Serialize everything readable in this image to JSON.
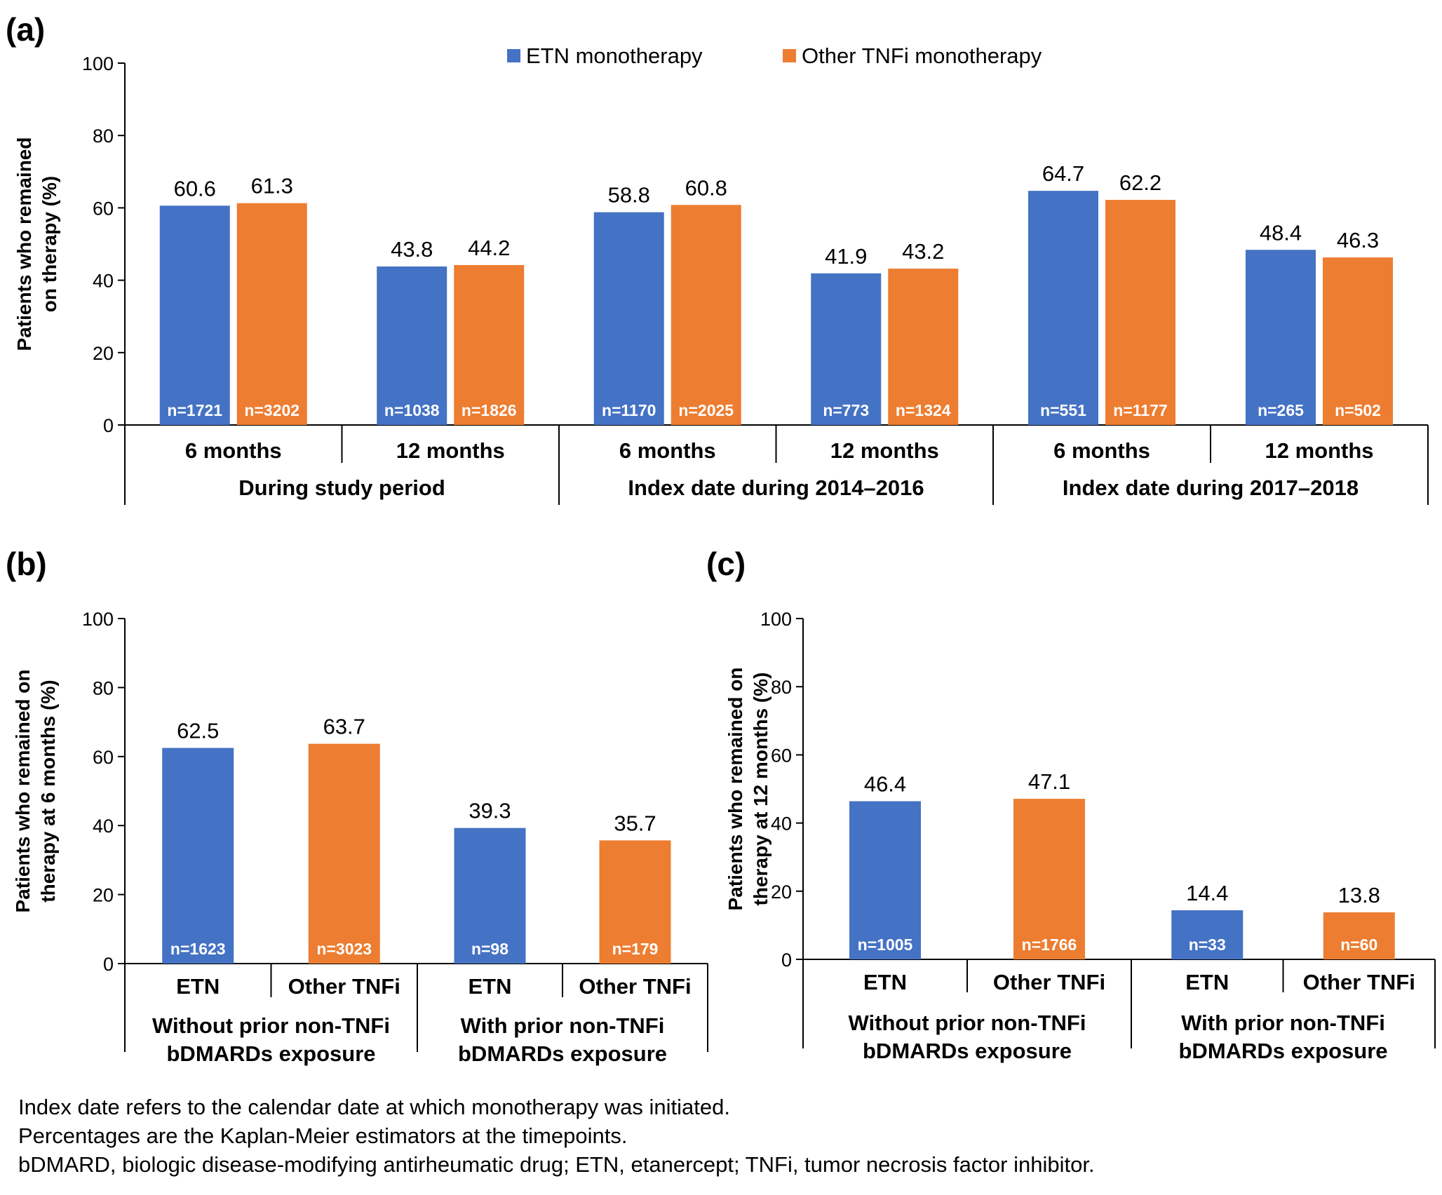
{
  "colors": {
    "etn": "#4472C4",
    "other": "#ED7D31",
    "axis": "#000000"
  },
  "legend": {
    "etn": "ETN monotherapy",
    "other": "Other TNFi monotherapy"
  },
  "chart_data": [
    {
      "panel": "(a)",
      "type": "bar",
      "ylabel_lines": [
        "Patients who remained",
        "on therapy (%)"
      ],
      "ylim": [
        0,
        100
      ],
      "yticks": [
        0,
        20,
        40,
        60,
        80,
        100
      ],
      "categories": [
        "6 months",
        "12 months",
        "6 months",
        "12 months",
        "6 months",
        "12 months"
      ],
      "groups": [
        "During study period",
        "Index date during 2014–2016",
        "Index date during 2017–2018"
      ],
      "series": [
        {
          "name": "ETN monotherapy",
          "values": [
            60.6,
            43.8,
            58.8,
            41.9,
            64.7,
            48.4
          ],
          "value_labels": [
            "60.6",
            "43.8",
            "58.8",
            "41.9",
            "64.7",
            "48.4"
          ],
          "n": [
            "n=1721",
            "n=1038",
            "n=1170",
            "n=773",
            "n=551",
            "n=265"
          ]
        },
        {
          "name": "Other TNFi monotherapy",
          "values": [
            61.3,
            44.2,
            60.8,
            43.2,
            62.2,
            46.3
          ],
          "value_labels": [
            "61.3",
            "44.2",
            "60.8",
            "43.2",
            "62.2",
            "46.3"
          ],
          "n": [
            "n=3202",
            "n=1826",
            "n=2025",
            "n=1324",
            "n=1177",
            "n=502"
          ]
        }
      ],
      "legend_position": "top-center"
    },
    {
      "panel": "(b)",
      "type": "bar",
      "ylabel_lines": [
        "Patients who remained on",
        "therapy at 6 months (%)"
      ],
      "ylim": [
        0,
        100
      ],
      "yticks": [
        0,
        20,
        40,
        60,
        80,
        100
      ],
      "categories": [
        "ETN",
        "Other TNFi",
        "ETN",
        "Other TNFi"
      ],
      "groups": [
        [
          "Without prior non-TNFi",
          "bDMARDs exposure"
        ],
        [
          "With prior non-TNFi",
          "bDMARDs exposure"
        ]
      ],
      "values": [
        62.5,
        63.7,
        39.3,
        35.7
      ],
      "value_labels": [
        "62.5",
        "63.7",
        "39.3",
        "35.7"
      ],
      "n": [
        "n=1623",
        "n=3023",
        "n=98",
        "n=179"
      ]
    },
    {
      "panel": "(c)",
      "type": "bar",
      "ylabel_lines": [
        "Patients who remained on",
        "therapy at 12 months (%)"
      ],
      "ylim": [
        0,
        100
      ],
      "yticks": [
        0,
        20,
        40,
        60,
        80,
        100
      ],
      "categories": [
        "ETN",
        "Other TNFi",
        "ETN",
        "Other TNFi"
      ],
      "groups": [
        [
          "Without prior non-TNFi",
          "bDMARDs exposure"
        ],
        [
          "With prior non-TNFi",
          "bDMARDs exposure"
        ]
      ],
      "values": [
        46.4,
        47.1,
        14.4,
        13.8
      ],
      "value_labels": [
        "46.4",
        "47.1",
        "14.4",
        "13.8"
      ],
      "n": [
        "n=1005",
        "n=1766",
        "n=33",
        "n=60"
      ]
    }
  ],
  "footnotes": [
    "Index date refers to the calendar date at which monotherapy was initiated.",
    "Percentages are the Kaplan-Meier estimators at the timepoints.",
    "bDMARD, biologic disease-modifying antirheumatic drug; ETN, etanercept; TNFi, tumor necrosis factor inhibitor."
  ]
}
